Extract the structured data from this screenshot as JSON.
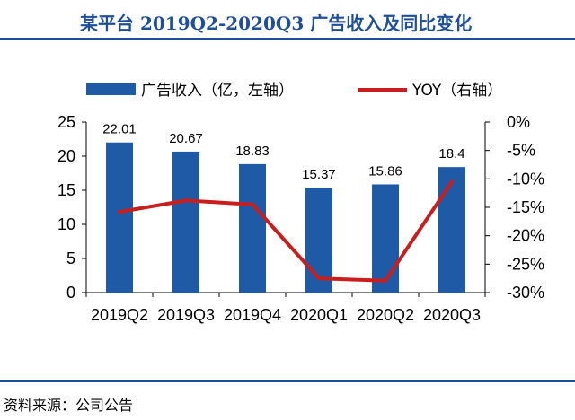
{
  "header": {
    "title": "某平台 2019Q2-2020Q3 广告收入及同比变化"
  },
  "footer": {
    "source": "资料来源：公司公告"
  },
  "colors": {
    "accent": "#1f4e9a",
    "bar": "#1f5aa6",
    "line": "#c81e1e"
  },
  "chart_data": {
    "type": "bar",
    "categories": [
      "2019Q2",
      "2019Q3",
      "2019Q4",
      "2020Q1",
      "2020Q2",
      "2020Q3"
    ],
    "series": [
      {
        "name": "广告收入（亿，左轴）",
        "type": "bar",
        "axis": "left",
        "values": [
          22.01,
          20.67,
          18.83,
          15.37,
          15.86,
          18.4
        ],
        "data_labels": [
          "22.01",
          "20.67",
          "18.83",
          "15.37",
          "15.86",
          "18.4"
        ]
      },
      {
        "name": "YOY（右轴）",
        "type": "line",
        "axis": "right",
        "values": [
          -15.8,
          -13.8,
          -14.5,
          -27.5,
          -27.9,
          -10.5
        ]
      }
    ],
    "y_left": {
      "ylim": [
        0,
        25
      ],
      "ticks": [
        0,
        5,
        10,
        15,
        20,
        25
      ],
      "tick_labels": [
        "0",
        "5",
        "10",
        "15",
        "20",
        "25"
      ]
    },
    "y_right": {
      "ylim": [
        -30,
        0
      ],
      "ticks": [
        0,
        -5,
        -10,
        -15,
        -20,
        -25,
        -30
      ],
      "tick_labels": [
        "0%",
        "-5%",
        "-10%",
        "-15%",
        "-20%",
        "-25%",
        "-30%"
      ]
    },
    "grid": false,
    "legend_position": "top"
  }
}
